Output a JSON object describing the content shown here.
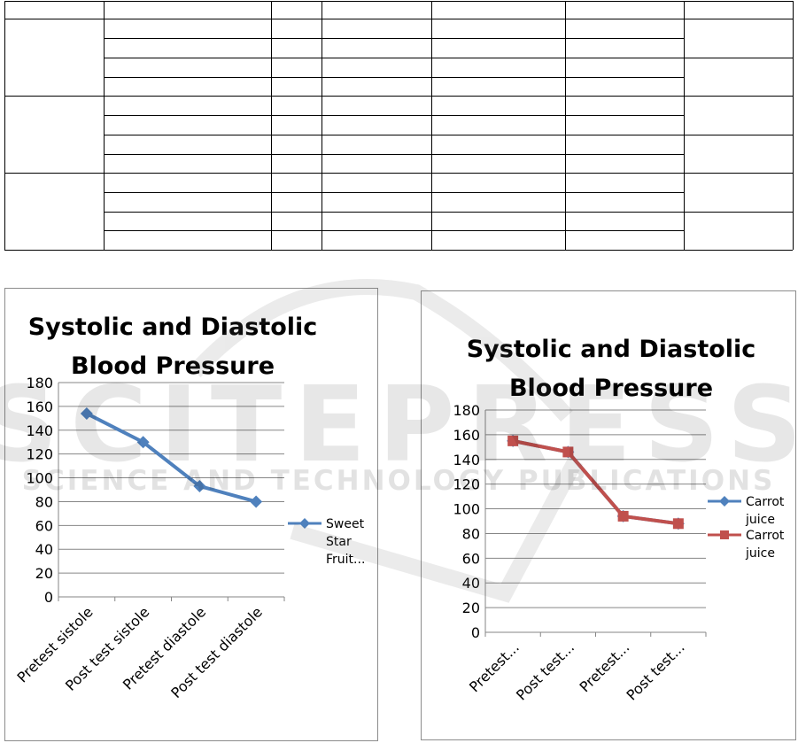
{
  "table": {
    "column_count": 7,
    "group_count": 3,
    "rows_per_group": 4,
    "merged_last_column": "pairs-of-rows",
    "content": "empty cells"
  },
  "watermark": {
    "line1": "SCITEPRESS",
    "line2": "SCIENCE AND TECHNOLOGY PUBLICATIONS"
  },
  "chart_data": [
    {
      "type": "line",
      "title_line1": "Systolic and Diastolic",
      "title_line2": "Blood Pressure",
      "categories": [
        "Pretest sistole",
        "Post test sistole",
        "Pretest diastole",
        "Post test diastole"
      ],
      "series": [
        {
          "name": "Sweet Star Fruit...",
          "legend_lines": [
            "Sweet",
            "Star",
            "Fruit..."
          ],
          "values": [
            154,
            130,
            93,
            80
          ],
          "color": "#4f81bd",
          "marker": "diamond"
        }
      ],
      "yticks": [
        "0",
        "20",
        "40",
        "60",
        "80",
        "100",
        "120",
        "140",
        "160",
        "180"
      ],
      "ylim": [
        0,
        180
      ],
      "grid": true,
      "legend_position": "right"
    },
    {
      "type": "line",
      "title_line1": "Systolic and Diastolic",
      "title_line2": "Blood Pressure",
      "categories": [
        "Pretest...",
        "Post test...",
        "Pretest...",
        "Post test..."
      ],
      "series": [
        {
          "name": "Carrot juice",
          "legend_lines": [
            "Carrot",
            "juice"
          ],
          "values": [
            155,
            146,
            94,
            88
          ],
          "color": "#4f81bd",
          "marker": "diamond",
          "hidden_under_next": true
        },
        {
          "name": "Carrot juice",
          "legend_lines": [
            "Carrot",
            "juice"
          ],
          "values": [
            155,
            146,
            94,
            88
          ],
          "color": "#c0504d",
          "marker": "square"
        }
      ],
      "yticks": [
        "0",
        "20",
        "40",
        "60",
        "80",
        "100",
        "120",
        "140",
        "160",
        "180"
      ],
      "ylim": [
        0,
        180
      ],
      "grid": true,
      "legend_position": "right"
    }
  ]
}
